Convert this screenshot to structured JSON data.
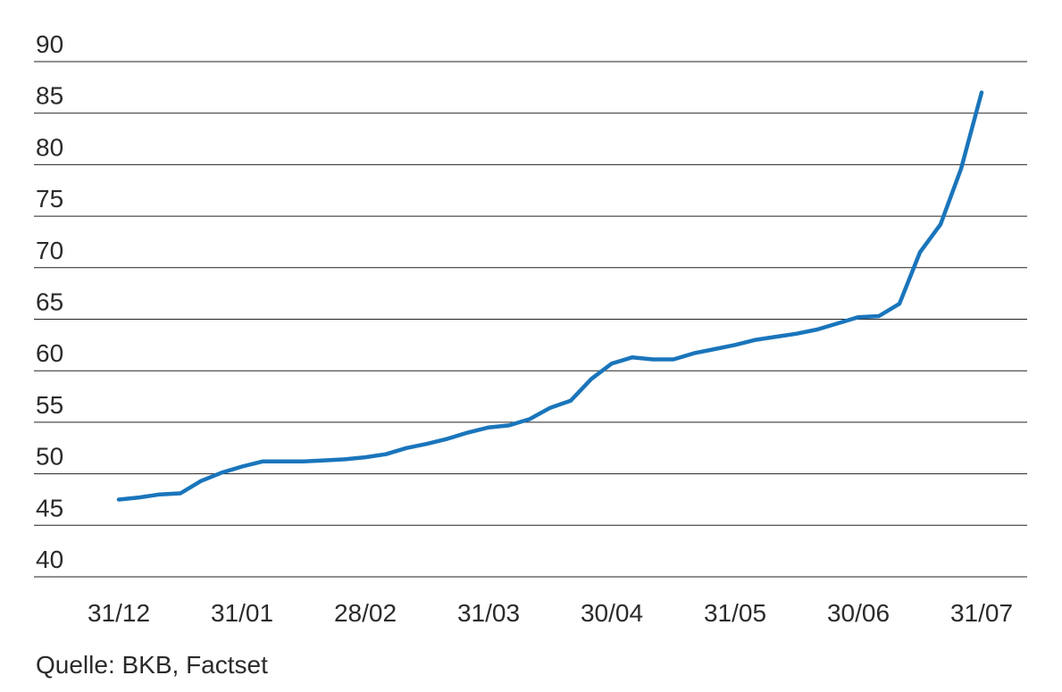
{
  "chart_data": {
    "type": "line",
    "source": "Quelle: BKB, Factset",
    "categories": [
      "31/12",
      null,
      null,
      null,
      null,
      null,
      "31/01",
      null,
      null,
      null,
      null,
      null,
      "28/02",
      null,
      null,
      null,
      null,
      null,
      "31/03",
      null,
      null,
      null,
      null,
      null,
      "30/04",
      null,
      null,
      null,
      null,
      null,
      "31/05",
      null,
      null,
      null,
      null,
      null,
      "30/06",
      null,
      null,
      null,
      null,
      null,
      "31/07"
    ],
    "series": [
      {
        "color": "#1a75bb",
        "values": [
          47.5,
          47.7,
          48.0,
          48.1,
          49.3,
          50.1,
          50.7,
          51.2,
          51.2,
          51.2,
          51.3,
          51.4,
          51.6,
          51.9,
          52.5,
          52.9,
          53.4,
          54.0,
          54.5,
          54.7,
          55.3,
          56.4,
          57.1,
          59.2,
          60.7,
          61.3,
          61.1,
          61.1,
          61.7,
          62.1,
          62.5,
          63.0,
          63.3,
          63.6,
          64.0,
          64.6,
          65.2,
          65.3,
          66.5,
          71.5,
          74.2,
          79.6,
          87.0
        ]
      }
    ],
    "ylim": [
      40,
      90
    ],
    "yticks": [
      40,
      45,
      50,
      55,
      60,
      65,
      70,
      75,
      80,
      85,
      90
    ],
    "grid": true
  }
}
